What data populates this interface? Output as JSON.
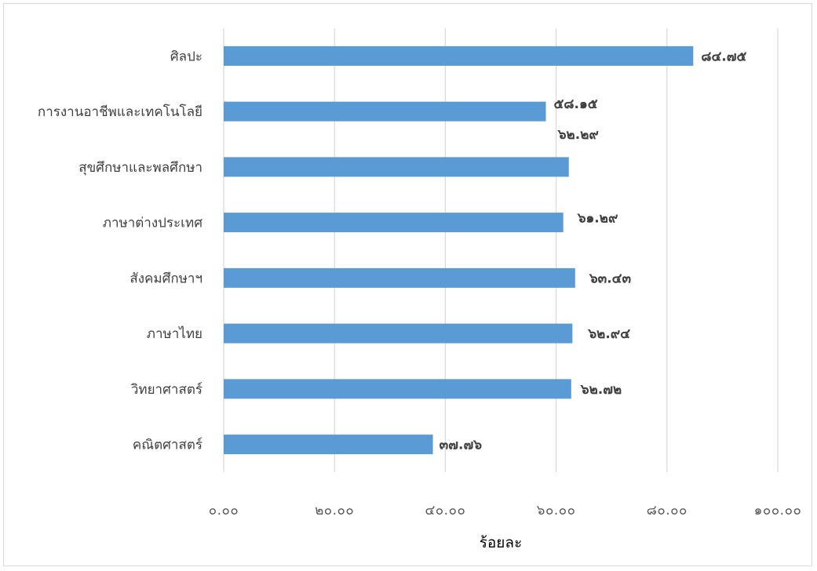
{
  "chart_data": {
    "type": "bar",
    "orientation": "horizontal",
    "title": "",
    "xlabel": "ร้อยละ",
    "ylabel": "",
    "xlim": [
      0,
      100
    ],
    "grid": true,
    "legend": "none",
    "bar_color": "#5b9bd5",
    "categories": [
      "ศิลปะ",
      "การงานอาชีพและเทคโนโลยี",
      "สุขศึกษาและพลศึกษา",
      "ภาษาต่างประเทศ",
      "สังคมศึกษาฯ",
      "ภาษาไทย",
      "วิทยาศาสตร์",
      "คณิตศาสตร์"
    ],
    "values": [
      84.75,
      58.15,
      62.29,
      61.29,
      63.43,
      62.94,
      62.72,
      37.76
    ],
    "data_labels": [
      "๘๔.๗๕",
      "๕๘.๑๕",
      "๖๒.๒๙",
      "๖๑.๒๙",
      "๖๓.๔๓",
      "๖๒.๙๔",
      "๖๒.๗๒",
      "๓๗.๗๖"
    ],
    "tick_values": [
      0,
      20,
      40,
      60,
      80,
      100
    ],
    "tick_labels": [
      "๐.๐๐",
      "๒๐.๐๐",
      "๔๐.๐๐",
      "๖๐.๐๐",
      "๘๐.๐๐",
      "๑๐๐.๐๐"
    ]
  }
}
